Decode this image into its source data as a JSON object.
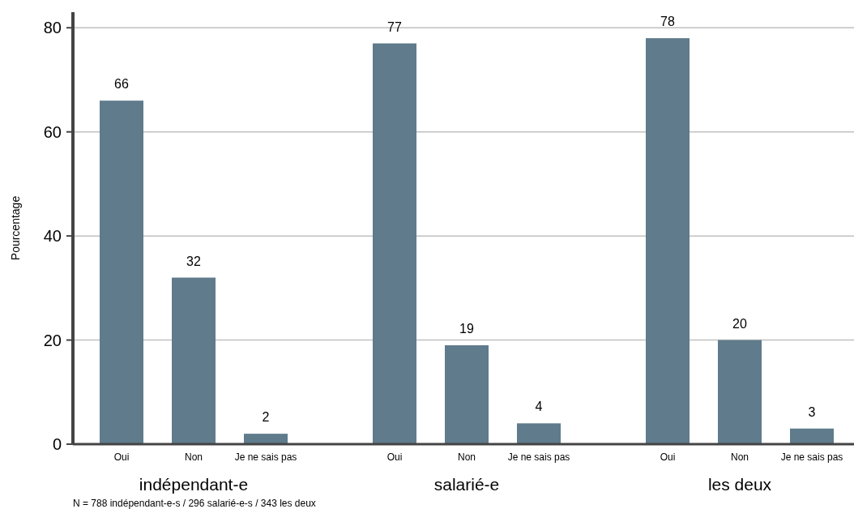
{
  "chart_data": {
    "type": "bar",
    "ylabel": "Pourcentage",
    "categories": [
      "indépendant-e",
      "salarié-e",
      "les deux"
    ],
    "series": [
      {
        "name": "Oui",
        "color": "#5f7b8c",
        "values": [
          66,
          77,
          78
        ]
      },
      {
        "name": "Non",
        "color": "#5f7b8c",
        "values": [
          32,
          19,
          20
        ]
      },
      {
        "name": "Je ne sais pas",
        "color": "#5f7b8c",
        "values": [
          2,
          4,
          3
        ]
      }
    ],
    "ylim": [
      0,
      83
    ],
    "yticks": [
      0,
      20,
      40,
      60,
      80
    ],
    "grid": "y",
    "data_labels": true,
    "annotations": [
      "N = 788 indépendant-e-s / 296 salarié-e-s / 343 les deux"
    ]
  }
}
